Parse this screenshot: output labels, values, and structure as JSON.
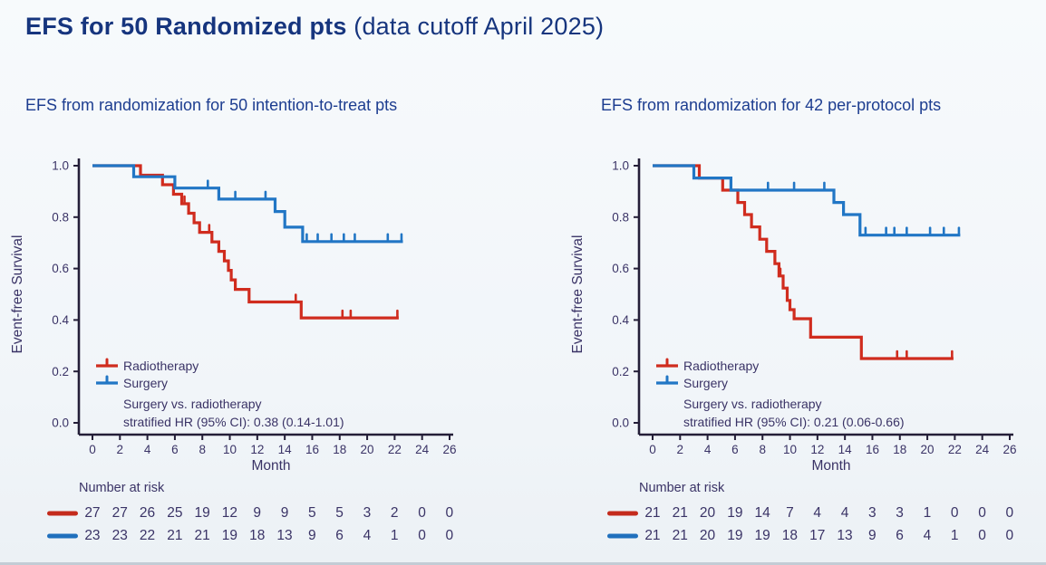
{
  "title": {
    "main": "EFS for 50 Randomized pts",
    "suffix": " (data cutoff April 2025)"
  },
  "colors": {
    "radiotherapy": "#d02c1e",
    "surgery": "#2176c5",
    "axis": "#241e38",
    "axis_text": "#3a3366",
    "heading": "#16357e",
    "subtitle": "#1d3d90"
  },
  "chart_data": [
    {
      "type": "line",
      "subtype": "kaplan-meier-step",
      "title": "EFS from randomization for 50 intention-to-treat pts",
      "xlabel": "Month",
      "ylabel": "Event-free Survival",
      "xlim": [
        0,
        26
      ],
      "ylim": [
        0.0,
        1.0
      ],
      "xticks": [
        0,
        2,
        4,
        6,
        8,
        10,
        12,
        14,
        16,
        18,
        20,
        22,
        24,
        26
      ],
      "yticks": [
        0.0,
        0.2,
        0.4,
        0.6,
        0.8,
        1.0
      ],
      "grid": false,
      "legend_position": "lower-left-inside",
      "legend_note": [
        "Surgery vs. radiotherapy",
        "stratified HR (95% CI): 0.38 (0.14-1.01)"
      ],
      "series": [
        {
          "name": "Radiotherapy",
          "color": "#d02c1e",
          "steps": [
            [
              0,
              1.0
            ],
            [
              3.5,
              0.963
            ],
            [
              5.1,
              0.926
            ],
            [
              5.9,
              0.889
            ],
            [
              6.5,
              0.852
            ],
            [
              7.0,
              0.815
            ],
            [
              7.4,
              0.778
            ],
            [
              7.8,
              0.741
            ],
            [
              8.7,
              0.704
            ],
            [
              9.2,
              0.667
            ],
            [
              9.6,
              0.63
            ],
            [
              9.9,
              0.593
            ],
            [
              10.1,
              0.556
            ],
            [
              10.4,
              0.519
            ],
            [
              11.4,
              0.47
            ],
            [
              15.2,
              0.408
            ]
          ],
          "end": 22.3,
          "censors": [
            [
              6.7,
              0.852
            ],
            [
              8.5,
              0.741
            ],
            [
              14.8,
              0.47
            ],
            [
              18.2,
              0.408
            ],
            [
              18.8,
              0.408
            ],
            [
              22.2,
              0.408
            ]
          ]
        },
        {
          "name": "Surgery",
          "color": "#2176c5",
          "steps": [
            [
              0,
              1.0
            ],
            [
              3.0,
              0.957
            ],
            [
              6.0,
              0.913
            ],
            [
              9.2,
              0.87
            ],
            [
              13.3,
              0.822
            ],
            [
              14.0,
              0.761
            ],
            [
              15.3,
              0.705
            ]
          ],
          "end": 22.6,
          "censors": [
            [
              8.4,
              0.913
            ],
            [
              10.4,
              0.87
            ],
            [
              12.6,
              0.87
            ],
            [
              15.6,
              0.705
            ],
            [
              16.4,
              0.705
            ],
            [
              17.4,
              0.705
            ],
            [
              18.3,
              0.705
            ],
            [
              19.1,
              0.705
            ],
            [
              21.5,
              0.705
            ],
            [
              22.5,
              0.705
            ]
          ]
        }
      ],
      "number_at_risk": {
        "label": "Number at risk",
        "months": [
          0,
          2,
          4,
          6,
          8,
          10,
          12,
          14,
          16,
          18,
          20,
          22,
          24,
          26
        ],
        "rows": [
          {
            "name": "Radiotherapy",
            "color": "#c42b1c",
            "values": [
              27,
              27,
              26,
              25,
              19,
              12,
              9,
              9,
              5,
              5,
              3,
              2,
              0,
              0
            ]
          },
          {
            "name": "Surgery",
            "color": "#2070bd",
            "values": [
              23,
              23,
              22,
              21,
              21,
              19,
              18,
              13,
              9,
              6,
              4,
              1,
              0,
              0
            ]
          }
        ]
      }
    },
    {
      "type": "line",
      "subtype": "kaplan-meier-step",
      "title": "EFS from randomization for 42 per-protocol pts",
      "xlabel": "Month",
      "ylabel": "Event-free Survival",
      "xlim": [
        0,
        26
      ],
      "ylim": [
        0.0,
        1.0
      ],
      "xticks": [
        0,
        2,
        4,
        6,
        8,
        10,
        12,
        14,
        16,
        18,
        20,
        22,
        24,
        26
      ],
      "yticks": [
        0.0,
        0.2,
        0.4,
        0.6,
        0.8,
        1.0
      ],
      "grid": false,
      "legend_position": "lower-left-inside",
      "legend_note": [
        "Surgery vs. radiotherapy",
        "stratified HR (95% CI): 0.21 (0.06-0.66)"
      ],
      "series": [
        {
          "name": "Radiotherapy",
          "color": "#d02c1e",
          "steps": [
            [
              0,
              1.0
            ],
            [
              3.4,
              0.952
            ],
            [
              5.1,
              0.905
            ],
            [
              6.2,
              0.857
            ],
            [
              6.7,
              0.81
            ],
            [
              7.2,
              0.762
            ],
            [
              7.8,
              0.714
            ],
            [
              8.3,
              0.667
            ],
            [
              8.9,
              0.619
            ],
            [
              9.2,
              0.571
            ],
            [
              9.5,
              0.524
            ],
            [
              9.8,
              0.476
            ],
            [
              10.0,
              0.44
            ],
            [
              10.3,
              0.405
            ],
            [
              11.5,
              0.333
            ],
            [
              15.2,
              0.25
            ]
          ],
          "end": 21.9,
          "censors": [
            [
              9.3,
              0.571
            ],
            [
              17.8,
              0.25
            ],
            [
              18.5,
              0.25
            ],
            [
              21.8,
              0.25
            ]
          ]
        },
        {
          "name": "Surgery",
          "color": "#2176c5",
          "steps": [
            [
              0,
              1.0
            ],
            [
              3.0,
              0.952
            ],
            [
              5.7,
              0.905
            ],
            [
              13.2,
              0.857
            ],
            [
              13.9,
              0.81
            ],
            [
              15.1,
              0.73
            ]
          ],
          "end": 22.4,
          "censors": [
            [
              8.4,
              0.905
            ],
            [
              10.3,
              0.905
            ],
            [
              12.5,
              0.905
            ],
            [
              15.5,
              0.73
            ],
            [
              17.0,
              0.73
            ],
            [
              17.6,
              0.73
            ],
            [
              18.5,
              0.73
            ],
            [
              20.2,
              0.73
            ],
            [
              21.2,
              0.73
            ],
            [
              22.3,
              0.73
            ]
          ]
        }
      ],
      "number_at_risk": {
        "label": "Number at risk",
        "months": [
          0,
          2,
          4,
          6,
          8,
          10,
          12,
          14,
          16,
          18,
          20,
          22,
          24,
          26
        ],
        "rows": [
          {
            "name": "Radiotherapy",
            "color": "#c42b1c",
            "values": [
              21,
              21,
              20,
              19,
              14,
              7,
              4,
              4,
              3,
              3,
              1,
              0,
              0,
              0
            ]
          },
          {
            "name": "Surgery",
            "color": "#2070bd",
            "values": [
              21,
              21,
              20,
              19,
              19,
              18,
              17,
              13,
              9,
              6,
              4,
              1,
              0,
              0
            ]
          }
        ]
      }
    }
  ]
}
